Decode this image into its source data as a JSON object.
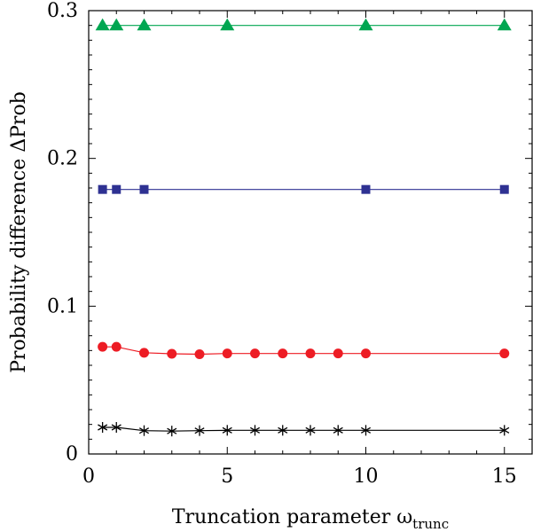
{
  "chart_data": {
    "type": "line",
    "title": "",
    "xlabel": "Truncation parameter ω",
    "xlabel_subscript": "trunc",
    "ylabel": "Probability difference ΔProb",
    "xlim": [
      0,
      16
    ],
    "ylim": [
      0,
      0.3
    ],
    "x_ticks": [
      0,
      5,
      10,
      15
    ],
    "x_tick_labels": [
      "0",
      "5",
      "10",
      "15"
    ],
    "y_ticks": [
      0,
      0.1,
      0.2,
      0.3
    ],
    "y_tick_labels": [
      "0",
      "0.1",
      "0.2",
      "0.3"
    ],
    "grid": false,
    "series": [
      {
        "marker": "triangle",
        "color": "#00a651",
        "x": [
          0.5,
          1,
          2,
          5,
          10,
          15
        ],
        "y": [
          0.29,
          0.29,
          0.29,
          0.29,
          0.29,
          0.29
        ]
      },
      {
        "marker": "square",
        "color": "#2e3192",
        "x": [
          0.5,
          1,
          2,
          10,
          15
        ],
        "y": [
          0.179,
          0.179,
          0.179,
          0.179,
          0.179
        ]
      },
      {
        "marker": "circle",
        "color": "#ed1c24",
        "x": [
          0.5,
          1,
          2,
          3,
          4,
          5,
          6,
          7,
          8,
          9,
          10,
          15
        ],
        "y": [
          0.0725,
          0.0725,
          0.0685,
          0.0678,
          0.0675,
          0.068,
          0.068,
          0.068,
          0.068,
          0.068,
          0.068,
          0.068
        ]
      },
      {
        "marker": "star",
        "color": "#000000",
        "x": [
          0.5,
          1,
          2,
          3,
          4,
          5,
          6,
          7,
          8,
          9,
          10,
          15
        ],
        "y": [
          0.018,
          0.018,
          0.0158,
          0.0155,
          0.0158,
          0.016,
          0.016,
          0.016,
          0.016,
          0.016,
          0.016,
          0.016
        ]
      }
    ]
  }
}
